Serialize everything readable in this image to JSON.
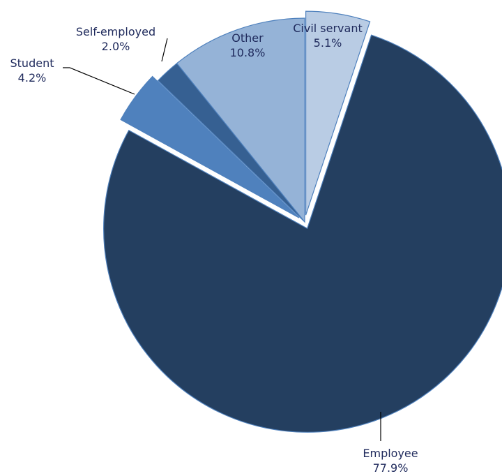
{
  "chart_data": {
    "type": "pie",
    "title": "",
    "start_angle_deg": 0,
    "direction": "clockwise",
    "slices": [
      {
        "label": "Civil servant",
        "value": 5.1,
        "display": "5.1%",
        "color": "#b9cce4",
        "exploded": true
      },
      {
        "label": "Employee",
        "value": 77.9,
        "display": "77.9%",
        "color": "#243f60",
        "exploded": true
      },
      {
        "label": "Student",
        "value": 4.2,
        "display": "4.2%",
        "color": "#4f81bd",
        "exploded": true
      },
      {
        "label": "Self-employed",
        "value": 2.0,
        "display": "2.0%",
        "color": "#366092",
        "exploded": false
      },
      {
        "label": "Other",
        "value": 10.8,
        "display": "10.8%",
        "color": "#95b3d7",
        "exploded": false
      }
    ],
    "outline_color": "#4f81bd",
    "label_color": "#1f2a5c"
  }
}
